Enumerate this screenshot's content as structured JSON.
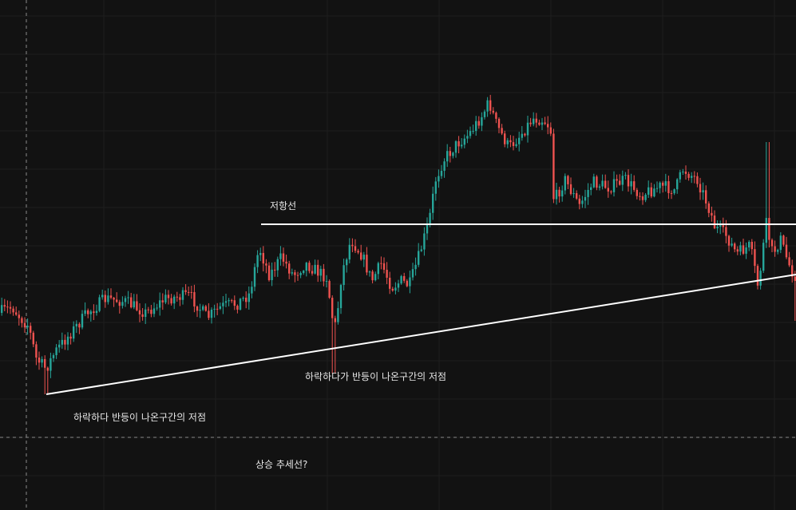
{
  "colors": {
    "background": "#121212",
    "grid": "#1e1e1e",
    "crosshair": "#8a8a8a",
    "up": "#26a69a",
    "down": "#ef5350",
    "line": "#ffffff",
    "text": "#e6e6e6"
  },
  "chart_data": {
    "type": "candlestick",
    "title": "",
    "xlabel": "",
    "ylabel": "",
    "grid": true,
    "annotations": {
      "resistance": "저항선",
      "low_left": "하락하다 반등이 나온구간의 저점",
      "low_mid": "하락하다가 반등이 나온구간의 저점",
      "trend": "상승 추세선?"
    }
  }
}
